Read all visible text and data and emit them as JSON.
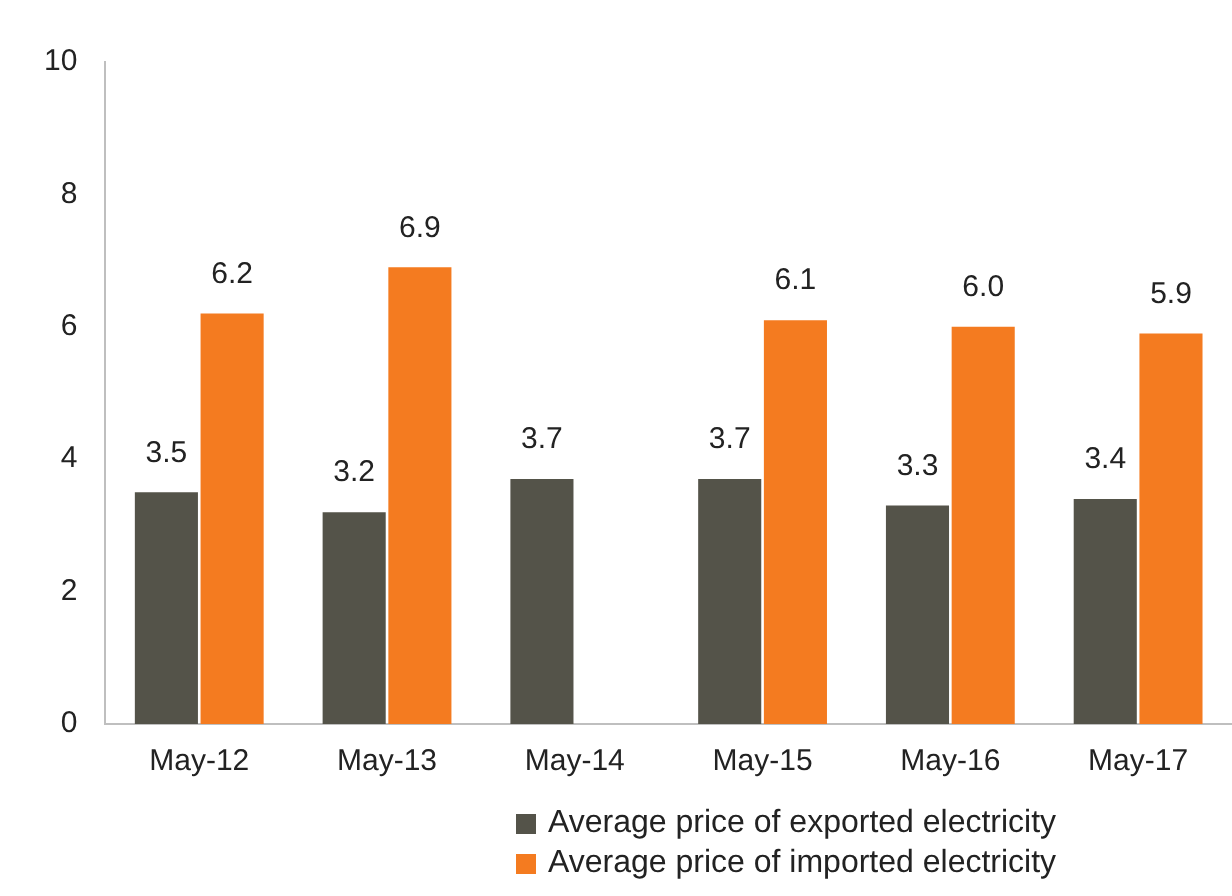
{
  "chart_data": {
    "type": "bar",
    "categories": [
      "May-12",
      "May-13",
      "May-14",
      "May-15",
      "May-16",
      "May-17"
    ],
    "series": [
      {
        "name": "Average price of exported electricity",
        "color": "#545349",
        "values": [
          3.5,
          3.2,
          3.7,
          3.7,
          3.3,
          3.4
        ],
        "value_labels": [
          "3.5",
          "3.2",
          "3.7",
          "3.7",
          "3.3",
          "3.4"
        ]
      },
      {
        "name": "Average price of imported electricity",
        "color": "#f47b20",
        "values": [
          6.2,
          6.9,
          null,
          6.1,
          6.0,
          5.9
        ],
        "value_labels": [
          "6.2",
          "6.9",
          null,
          "6.1",
          "6.0",
          "5.9"
        ]
      }
    ],
    "ylim": [
      0,
      10
    ],
    "yticks": [
      0,
      2,
      4,
      6,
      8,
      10
    ],
    "grid": false,
    "legend": "bottom"
  }
}
